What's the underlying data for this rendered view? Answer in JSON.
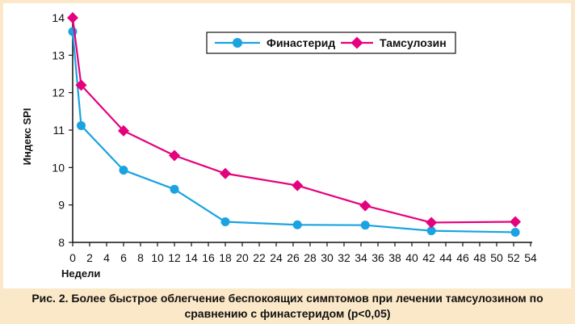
{
  "chart_data": {
    "type": "line",
    "ylabel": "Индекс SPI",
    "xlabel": "Недели",
    "xlim": [
      0,
      54
    ],
    "ylim": [
      8,
      14
    ],
    "x_ticks": [
      0,
      2,
      4,
      6,
      8,
      10,
      12,
      14,
      16,
      18,
      20,
      22,
      24,
      26,
      28,
      30,
      32,
      34,
      36,
      38,
      40,
      42,
      44,
      46,
      48,
      50,
      52,
      54
    ],
    "y_ticks": [
      8,
      9,
      10,
      11,
      12,
      13,
      14
    ],
    "grid": false,
    "legend_position": "top-right",
    "series": [
      {
        "name": "Финастерид",
        "color": "#1aa3e0",
        "marker": "circle",
        "points": [
          [
            0,
            13.63
          ],
          [
            1,
            11.12
          ],
          [
            6,
            9.93
          ],
          [
            12,
            9.42
          ],
          [
            18,
            8.55
          ],
          [
            26.5,
            8.47
          ],
          [
            34.5,
            8.46
          ],
          [
            42.3,
            8.31
          ],
          [
            52.2,
            8.27
          ]
        ]
      },
      {
        "name": "Тамсулозин",
        "color": "#e5007e",
        "marker": "diamond",
        "points": [
          [
            0,
            14.0
          ],
          [
            1,
            12.2
          ],
          [
            6,
            10.98
          ],
          [
            12,
            10.32
          ],
          [
            18,
            9.84
          ],
          [
            26.5,
            9.52
          ],
          [
            34.5,
            8.98
          ],
          [
            42.3,
            8.53
          ],
          [
            52.2,
            8.55
          ]
        ]
      }
    ]
  },
  "caption": {
    "line1": "Рис. 2. Более быстрое облегчение беспокоящих симптомов при лечении тамсулозином по",
    "line2": "сравнению с финастеридом (p<0,05)"
  }
}
